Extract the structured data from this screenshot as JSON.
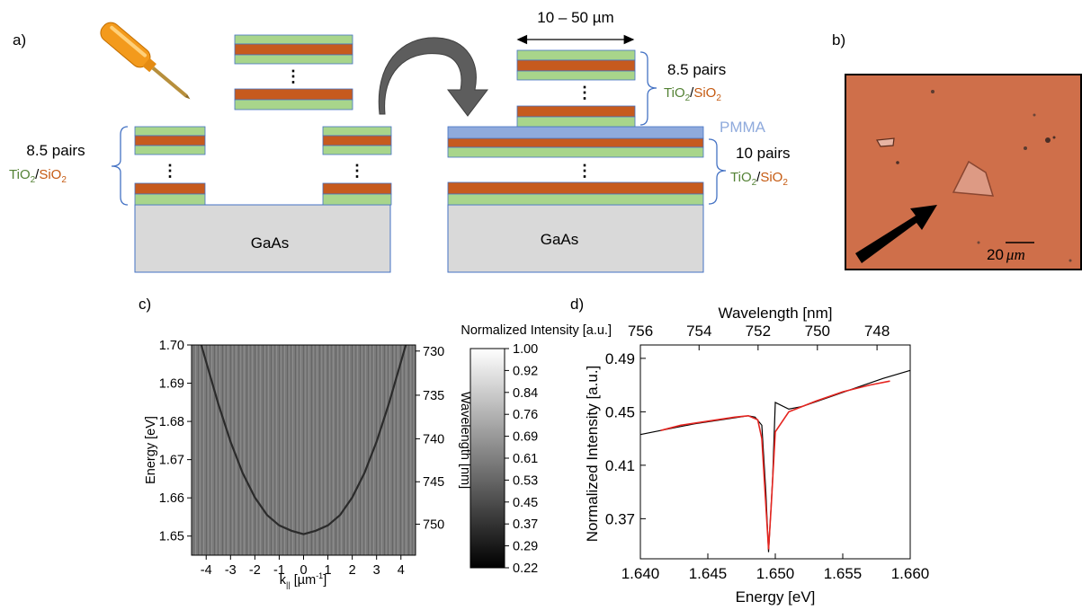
{
  "panel_a": {
    "label": "a)",
    "left_pairs": "8.5 pairs",
    "right_top_pairs": "8.5 pairs",
    "right_bottom_pairs": "10 pairs",
    "tio2": "TiO",
    "sio2": "SiO",
    "sub2": "2",
    "slash": "/",
    "pmma": "PMMA",
    "substrate": "GaAs",
    "width_label": "10 – 50 µm",
    "ellipsis": "⋮",
    "colors": {
      "tio2": "#a8d58b",
      "sio2": "#c65a1e",
      "pmma": "#8faadc",
      "gaas": "#d9d9d9",
      "outline": "#4472c4",
      "tio2_text": "#548235",
      "sio2_text": "#c55a11"
    }
  },
  "panel_b": {
    "label": "b)",
    "scale_number": "20",
    "scale_unit": "μm",
    "colors": {
      "background": "#cf6f4a",
      "flake": "#dd9a84"
    }
  },
  "panel_c": {
    "label": "c)",
    "ylabel": "Energy [eV]",
    "xlabel_main": "k",
    "xlabel_sub": "||",
    "xlabel_unit_pre": " [µm",
    "xlabel_unit_sup": "-1",
    "xlabel_unit_post": "]",
    "right_label": "Wavelength [nm]",
    "colorbar_title": "Normalized Intensity [a.u.]",
    "yticks": [
      "1.70",
      "1.69",
      "1.68",
      "1.67",
      "1.66",
      "1.65"
    ],
    "xticks": [
      "-4",
      "-3",
      "-2",
      "-1",
      "0",
      "1",
      "2",
      "3",
      "4"
    ],
    "wlticks": [
      "730",
      "735",
      "740",
      "745",
      "750"
    ],
    "cbticks": [
      "1.00",
      "0.92",
      "0.84",
      "0.76",
      "0.69",
      "0.61",
      "0.53",
      "0.45",
      "0.37",
      "0.29",
      "0.22"
    ]
  },
  "panel_d": {
    "label": "d)",
    "xlabel": "Energy [eV]",
    "ylabel": "Normalized Intensity [a.u.]",
    "toplabel": "Wavelength [nm]",
    "xticks": [
      "1.640",
      "1.645",
      "1.650",
      "1.655",
      "1.660"
    ],
    "yticks": [
      "0.49",
      "0.45",
      "0.41",
      "0.37"
    ],
    "topticks": [
      "756",
      "754",
      "752",
      "750",
      "748"
    ]
  },
  "chart_data": [
    {
      "type": "heatmap",
      "x_axis": "k_|| [µm^-1]",
      "y_axis": "Energy [eV]",
      "xlim": [
        -4.6,
        4.6
      ],
      "ylim": [
        1.645,
        1.7
      ],
      "x_ticks": [
        -4,
        -3,
        -2,
        -1,
        0,
        1,
        2,
        3,
        4
      ],
      "y_ticks": [
        1.65,
        1.66,
        1.67,
        1.68,
        1.69,
        1.7
      ],
      "secondary_y": {
        "label": "Wavelength [nm]",
        "ticks": [
          730,
          735,
          740,
          745,
          750
        ]
      },
      "colorbar": {
        "label": "Normalized Intensity [a.u.]",
        "range": [
          0.22,
          1.0
        ]
      },
      "dispersion": {
        "k": [
          -4.2,
          -3.5,
          -3.0,
          -2.5,
          -2.0,
          -1.5,
          -1.0,
          -0.5,
          0.0,
          0.5,
          1.0,
          1.5,
          2.0,
          2.5,
          3.0,
          3.5,
          4.2
        ],
        "energy": [
          1.7,
          1.6845,
          1.6747,
          1.6665,
          1.6601,
          1.6555,
          1.6528,
          1.6514,
          1.6505,
          1.6514,
          1.6528,
          1.6555,
          1.6601,
          1.6665,
          1.6747,
          1.6845,
          1.7
        ]
      }
    },
    {
      "type": "line",
      "xlabel": "Energy [eV]",
      "ylabel": "Normalized Intensity [a.u.]",
      "xlim": [
        1.64,
        1.66
      ],
      "ylim": [
        0.34,
        0.5
      ],
      "secondary_x": {
        "label": "Wavelength [nm]",
        "ticks": [
          756,
          754,
          752,
          750,
          748
        ]
      },
      "series": [
        {
          "color": "#000000",
          "x": [
            1.64,
            1.642,
            1.644,
            1.646,
            1.648,
            1.6485,
            1.649,
            1.6493,
            1.6495,
            1.6498,
            1.65,
            1.651,
            1.652,
            1.654,
            1.656,
            1.658,
            1.66
          ],
          "y": [
            0.433,
            0.437,
            0.441,
            0.444,
            0.447,
            0.446,
            0.44,
            0.39,
            0.345,
            0.4,
            0.457,
            0.452,
            0.454,
            0.461,
            0.468,
            0.475,
            0.481
          ]
        },
        {
          "color": "#e52520",
          "x": [
            1.6415,
            1.643,
            1.645,
            1.647,
            1.648,
            1.6487,
            1.649,
            1.6493,
            1.6495,
            1.6497,
            1.65,
            1.651,
            1.653,
            1.655,
            1.657,
            1.6585
          ],
          "y": [
            0.436,
            0.44,
            0.443,
            0.446,
            0.447,
            0.444,
            0.43,
            0.38,
            0.347,
            0.38,
            0.435,
            0.45,
            0.458,
            0.465,
            0.47,
            0.473
          ]
        }
      ]
    }
  ]
}
